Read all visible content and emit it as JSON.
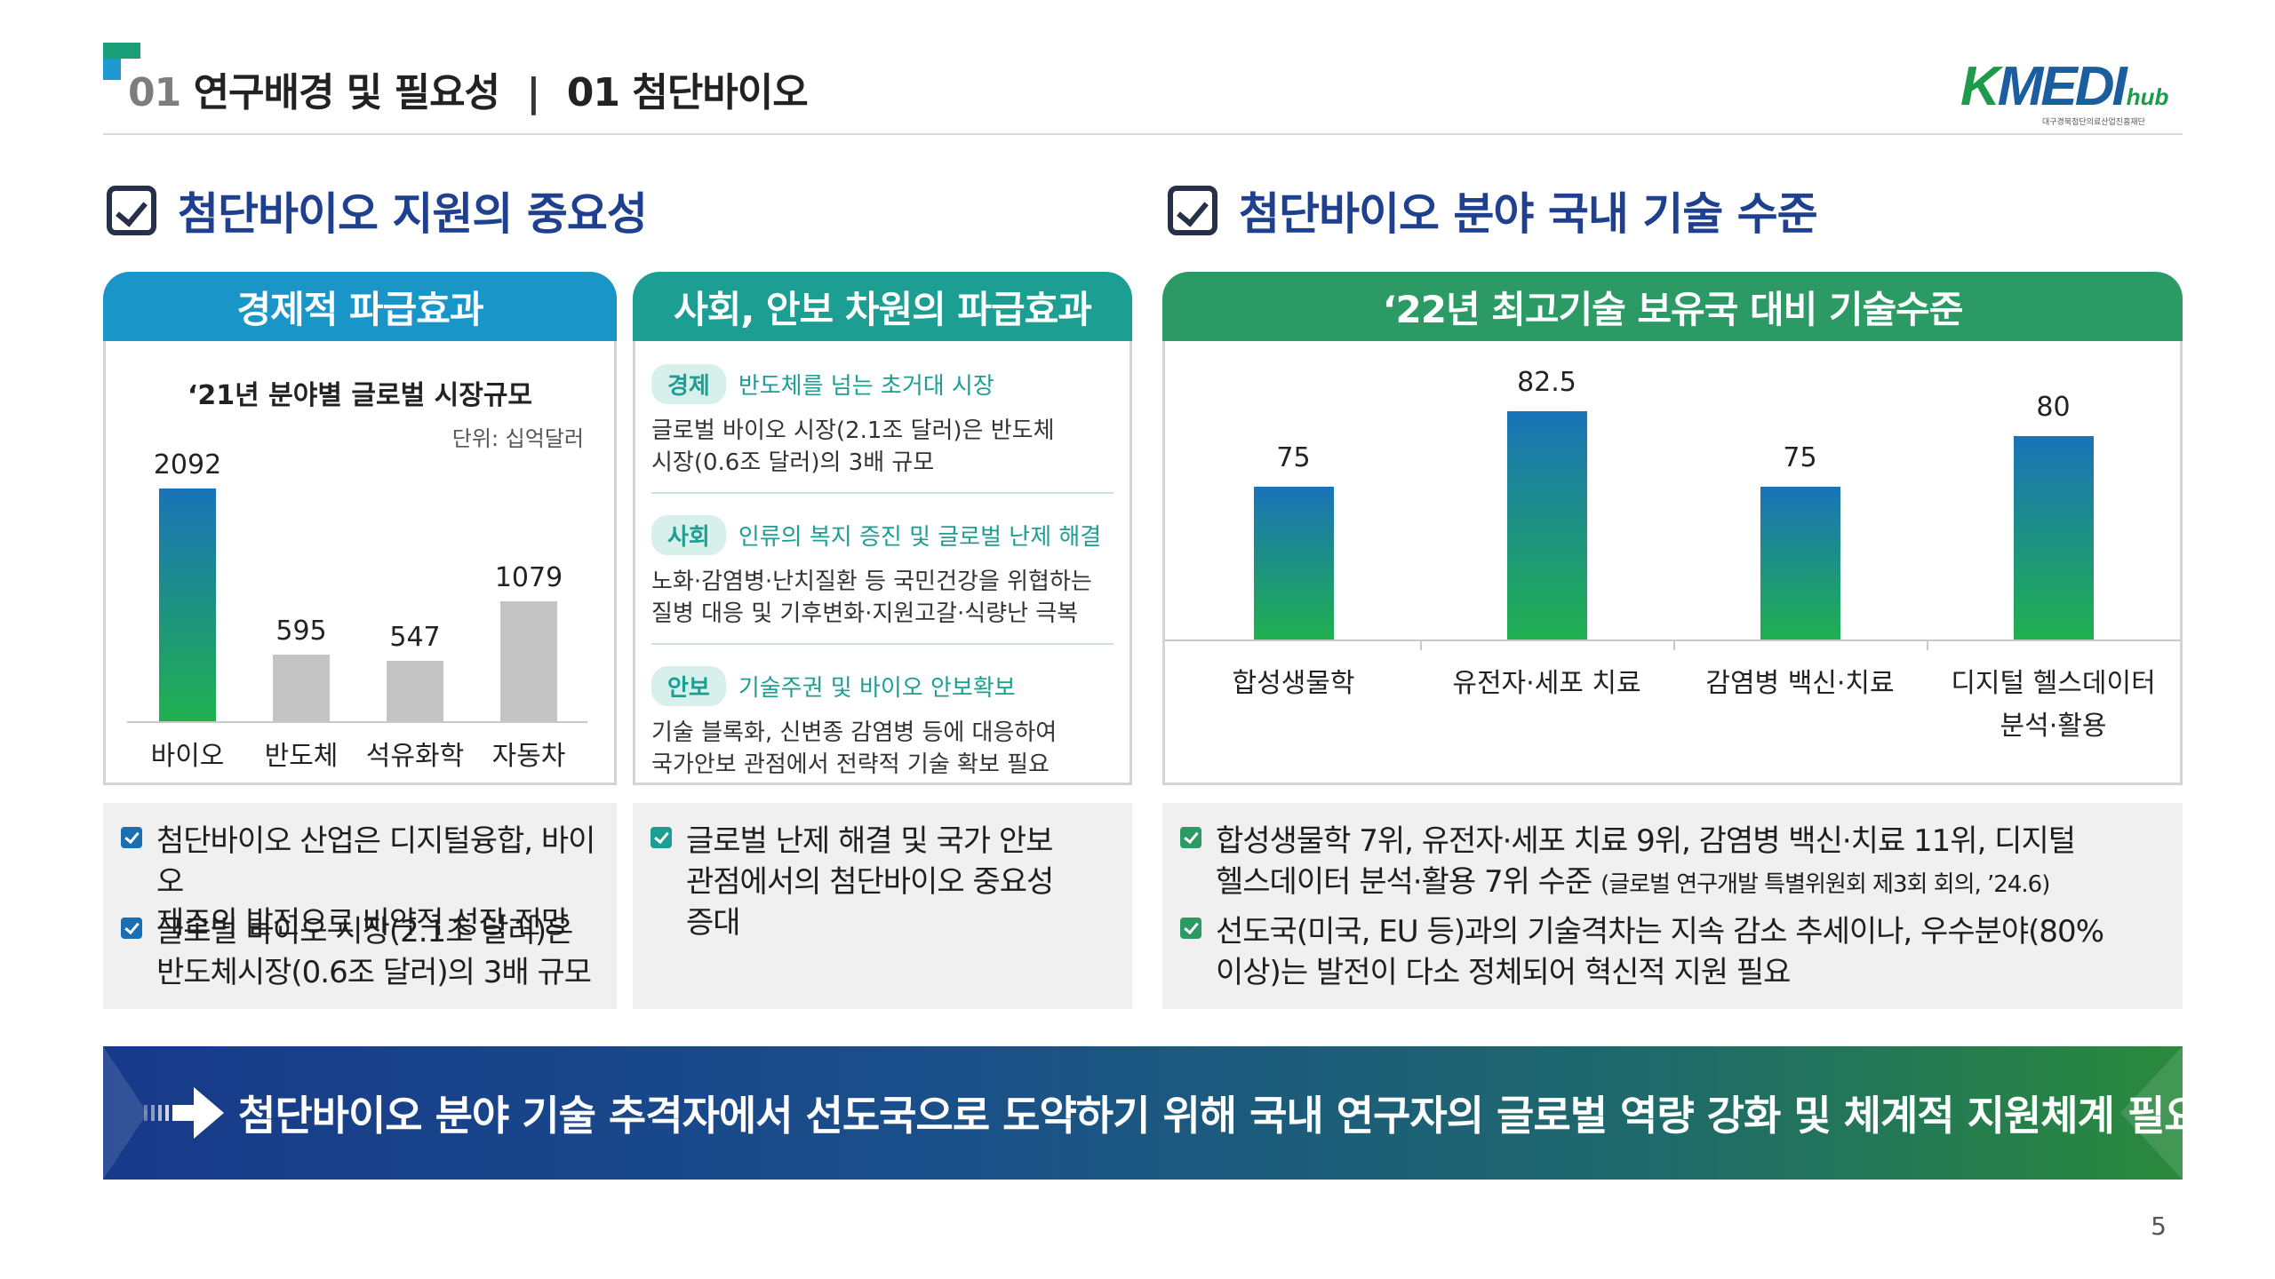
{
  "header": {
    "section_no": "01",
    "section_title": "연구배경 및 필요성",
    "divider": "|",
    "sub_no": "01",
    "sub_title": "첨단바이오",
    "logo_text": "MEDI",
    "logo_k": "K",
    "logo_hub": "hub",
    "logo_sub": "대구경북첨단의료산업진흥재단"
  },
  "left_section": {
    "title": "첨단바이오 지원의 중요성",
    "panel1": {
      "header": "경제적 파급효과",
      "chart_title": "‘21년 분야별 글로벌 시장규모",
      "unit": "단위: 십억달러"
    },
    "panel2": {
      "header": "사회, 안보 차원의 파급효과",
      "items": [
        {
          "tag": "경제",
          "headline": "반도체를 넘는 초거대 시장",
          "body1": "글로벌 바이오 시장(2.1조 달러)은 반도체",
          "body2": "시장(0.6조 달러)의 3배 규모"
        },
        {
          "tag": "사회",
          "headline": "인류의 복지 증진 및 글로벌 난제 해결",
          "body1": "노화·감염병·난치질환 등 국민건강을 위협하는",
          "body2": "질병 대응 및 기후변화·지원고갈·식량난 극복"
        },
        {
          "tag": "안보",
          "headline": "기술주권 및 바이오 안보확보",
          "body1": "기술 블록화, 신변종 감염병 등에 대응하여",
          "body2": "국가안보 관점에서 전략적 기술 확보 필요"
        }
      ]
    },
    "summary1": [
      {
        "line1": "첨단바이오 산업은 디지털융합, 바이오",
        "line2": "제조의 발전으로 비약적 성장 전망"
      },
      {
        "line1": "글로벌 바이오 시장(2.1조 달러)은",
        "line2": "반도체시장(0.6조 달러)의 3배 규모"
      }
    ],
    "summary2": {
      "line1": "글로벌 난제 해결 및 국가 안보",
      "line2": "관점에서의 첨단바이오 중요성",
      "line3": "증대"
    }
  },
  "right_section": {
    "title": "첨단바이오 분야 국내 기술 수준",
    "panel_header": "‘22년 최고기술 보유국 대비 기술수준",
    "summary": [
      {
        "line1": "합성생물학 7위, 유전자·세포 치료 9위, 감염병 백신·치료 11위, 디지털",
        "line2": "헬스데이터 분석·활용 7위 수준",
        "note": "(글로벌 연구개발 특별위원회 제3회 회의, ’24.6)"
      },
      {
        "line1": "선도국(미국, EU 등)과의 기술격차는 지속 감소 추세이나, 우수분야(80%",
        "line2": "이상)는 발전이 다소 정체되어 혁신적 지원 필요"
      }
    ]
  },
  "banner": {
    "text": "첨단바이오 분야 기술 추격자에서 선도국으로 도약하기 위해 국내 연구자의 글로벌 역량 강화 및 체계적 지원체계 필요"
  },
  "page_number": "5",
  "colors": {
    "title_blue": "#1f3f8f",
    "header_blue": "#1a95c8",
    "header_teal": "#1d9e92",
    "header_green": "#2c9a65",
    "bar_gray": "#c4c4c4"
  },
  "chart_data": [
    {
      "type": "bar",
      "title": "‘21년 분야별 글로벌 시장규모",
      "unit": "단위: 십억달러",
      "categories": [
        "바이오",
        "반도체",
        "석유화학",
        "자동차"
      ],
      "values": [
        2092,
        595,
        547,
        1079
      ],
      "ylim": [
        0,
        2300
      ],
      "highlight_index": 0,
      "grid": false
    },
    {
      "type": "bar",
      "categories": [
        "합성생물학",
        "유전자·세포 치료",
        "감염병 백신·치료",
        "디지털 헬스데이터"
      ],
      "categories_line2": [
        "",
        "",
        "",
        "분석·활용"
      ],
      "values": [
        75,
        82.5,
        75,
        80
      ],
      "ylim": [
        60,
        85
      ],
      "grid": false
    }
  ]
}
